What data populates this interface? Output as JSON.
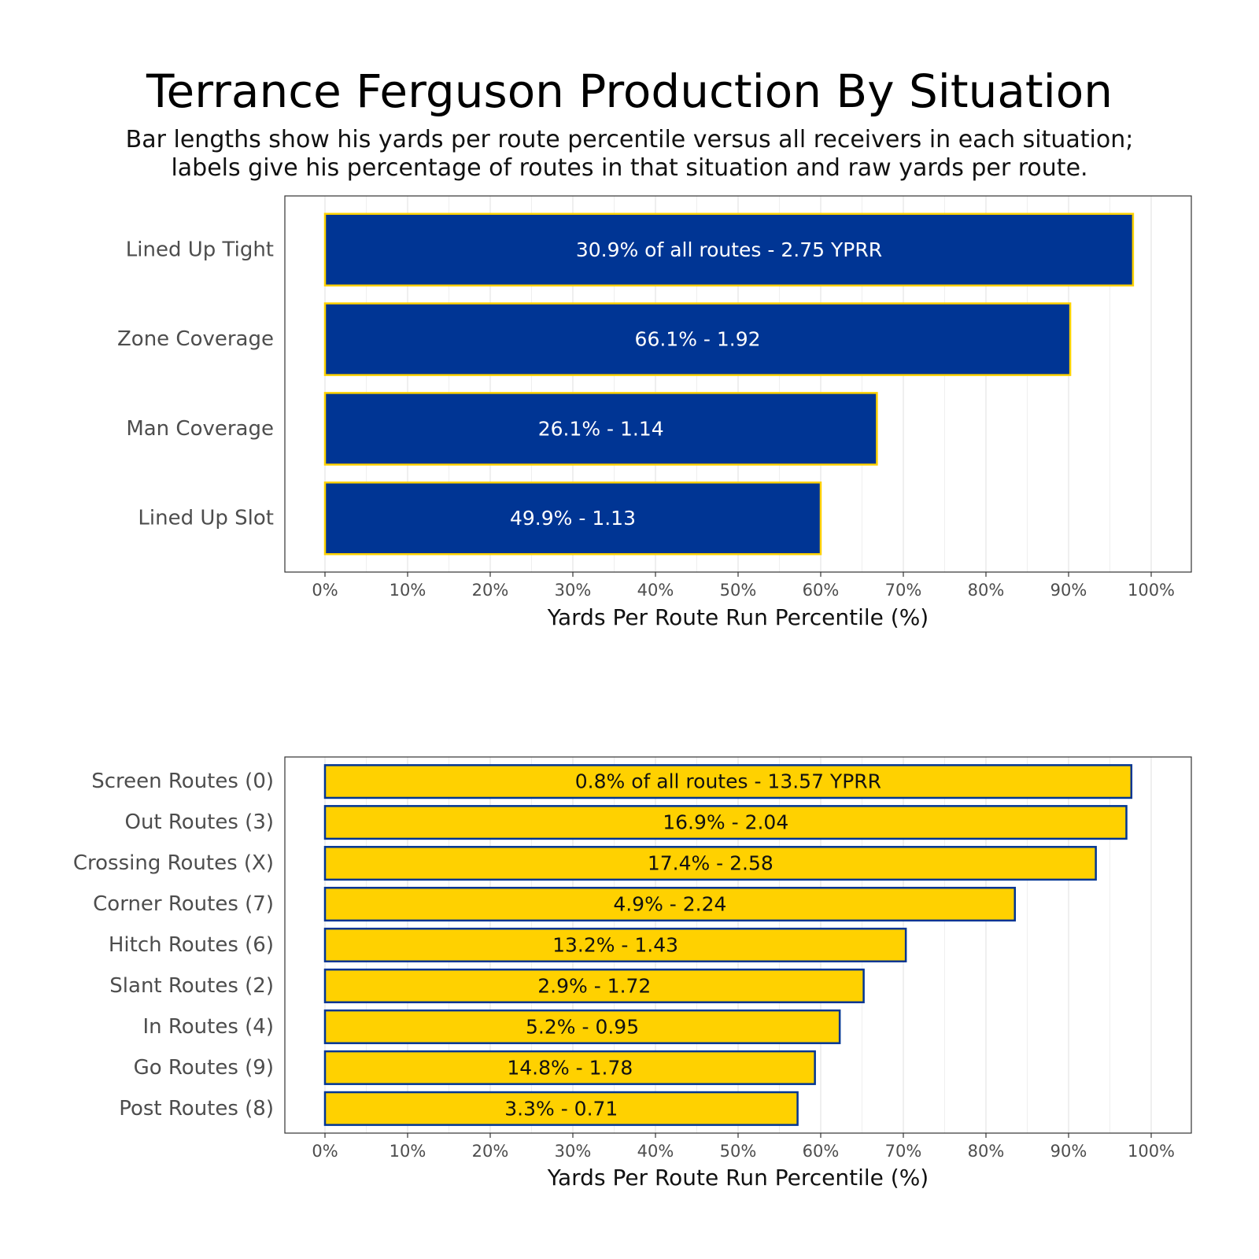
{
  "title": "Terrance Ferguson Production By Situation",
  "subtitle_line1": "Bar lengths show his yards per route percentile versus all receivers in each situation;",
  "subtitle_line2": "labels give his percentage of routes in that situation and raw yards per route.",
  "colors": {
    "navy": "#003594",
    "gold": "#FFD100",
    "grid": "#ebebeb",
    "panel_border": "#333333"
  },
  "chart_data": [
    {
      "type": "bar",
      "orientation": "horizontal",
      "categories": [
        "Lined Up Tight",
        "Zone Coverage",
        "Man Coverage",
        "Lined Up Slot"
      ],
      "values": [
        97.8,
        90.2,
        66.8,
        60.0
      ],
      "labels": [
        "30.9% of all routes - 2.75 YPRR",
        "66.1% - 1.92",
        "26.1% - 1.14",
        "49.9% - 1.13"
      ],
      "xlabel": "Yards Per Route Run Percentile (%)",
      "xlim": [
        0,
        100
      ],
      "xticks": [
        "0%",
        "10%",
        "20%",
        "30%",
        "40%",
        "50%",
        "60%",
        "70%",
        "80%",
        "90%",
        "100%"
      ],
      "bar_fill": "#003594",
      "bar_border": "#FFD100",
      "grid": true
    },
    {
      "type": "bar",
      "orientation": "horizontal",
      "categories": [
        "Screen Routes (0)",
        "Out Routes (3)",
        "Crossing Routes (X)",
        "Corner Routes (7)",
        "Hitch Routes (6)",
        "Slant Routes (2)",
        "In Routes (4)",
        "Go Routes (9)",
        "Post Routes (8)"
      ],
      "values": [
        97.6,
        97.0,
        93.3,
        83.5,
        70.3,
        65.2,
        62.3,
        59.3,
        57.2
      ],
      "labels": [
        "0.8% of all routes - 13.57 YPRR",
        "16.9% - 2.04",
        "17.4% - 2.58",
        "4.9% - 2.24",
        "13.2% - 1.43",
        "2.9% - 1.72",
        "5.2% - 0.95",
        "14.8% - 1.78",
        "3.3% - 0.71"
      ],
      "xlabel": "Yards Per Route Run Percentile (%)",
      "xlim": [
        0,
        100
      ],
      "xticks": [
        "0%",
        "10%",
        "20%",
        "30%",
        "40%",
        "50%",
        "60%",
        "70%",
        "80%",
        "90%",
        "100%"
      ],
      "bar_fill": "#FFD100",
      "bar_border": "#003594",
      "grid": true
    }
  ]
}
